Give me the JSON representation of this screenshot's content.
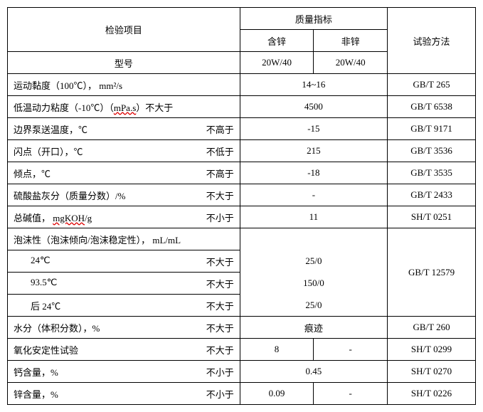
{
  "header": {
    "item": "检验项目",
    "quality": "质量指标",
    "zinc": "含锌",
    "nonzinc": "非锌",
    "method": "试验方法",
    "model": "型号",
    "m1": "20W/40",
    "m2": "20W/40"
  },
  "rows": [
    {
      "name": "运动黏度（100℃）， mm²/s",
      "limit": "",
      "value": "14~16",
      "method": "GB/T 265"
    },
    {
      "name": "低温动力粘度（-10℃）（",
      "underlined": "mPa.s",
      "name_tail": "）不大于",
      "limit": "",
      "value": "4500",
      "method": "GB/T 6538"
    },
    {
      "name": "边界泵送温度，℃",
      "limit": "不高于",
      "value": "-15",
      "method": "GB/T 9171"
    },
    {
      "name": "闪点（开口），℃",
      "limit": "不低于",
      "value": "215",
      "method": "GB/T 3536"
    },
    {
      "name": "倾点，℃",
      "limit": "不高于",
      "value": "-18",
      "method": "GB/T 3535"
    },
    {
      "name": "硫酸盐灰分（质量分数）/%",
      "limit": "不大于",
      "value": "-",
      "method": "GB/T 2433"
    },
    {
      "name": "总碱值， ",
      "underlined": "mgKOH",
      "name_tail": "/g",
      "limit": "不小于",
      "value": "11",
      "method": "SH/T 0251"
    }
  ],
  "foam": {
    "title": "泡沫性（泡沫倾向/泡沫稳定性）， mL/mL",
    "r1_name": "24℃",
    "r1_limit": "不大于",
    "r1_val": "25/0",
    "r2_name": "93.5℃",
    "r2_limit": "不大于",
    "r2_val": "150/0",
    "r3_name": "后 24℃",
    "r3_limit": "不大于",
    "r3_val": "25/0",
    "method": "GB/T 12579"
  },
  "rows2": [
    {
      "name": "水分（体积分数），%",
      "limit": "不大于",
      "value": "痕迹",
      "method": "GB/T 260"
    },
    {
      "name": "氧化安定性试验",
      "limit": "不大于",
      "v1": "8",
      "v2": "-",
      "method": "SH/T 0299"
    },
    {
      "name": "钙含量，%",
      "limit": "不小于",
      "value": "0.45",
      "method": "SH/T 0270"
    },
    {
      "name": "锌含量，%",
      "limit": "不小于",
      "v1": "0.09",
      "v2": "-",
      "method": "SH/T 0226"
    }
  ]
}
